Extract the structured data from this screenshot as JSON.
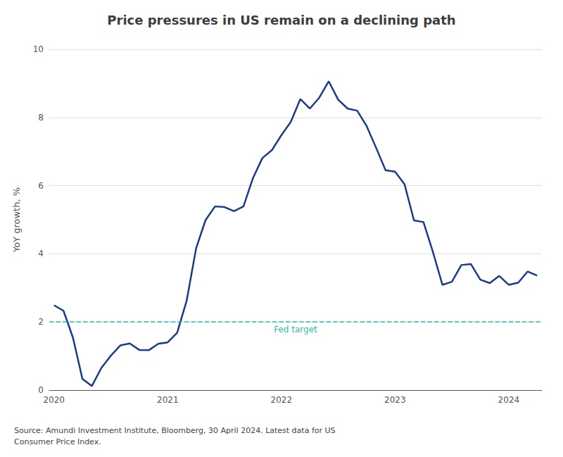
{
  "chart_data": {
    "type": "line",
    "title": "Price pressures in US remain on a declining path",
    "ylabel": "YoY growth, %",
    "categories": [
      "2020",
      null,
      null,
      null,
      null,
      null,
      null,
      null,
      null,
      null,
      null,
      null,
      "2021",
      null,
      null,
      null,
      null,
      null,
      null,
      null,
      null,
      null,
      null,
      null,
      "2022",
      null,
      null,
      null,
      null,
      null,
      null,
      null,
      null,
      null,
      null,
      null,
      "2023",
      null,
      null,
      null,
      null,
      null,
      null,
      null,
      null,
      null,
      null,
      null,
      "2024",
      null,
      null,
      null
    ],
    "values": [
      2.49,
      2.33,
      1.54,
      0.33,
      0.12,
      0.65,
      1.01,
      1.31,
      1.37,
      1.18,
      1.17,
      1.36,
      1.4,
      1.68,
      2.62,
      4.16,
      4.99,
      5.39,
      5.37,
      5.25,
      5.39,
      6.22,
      6.81,
      7.04,
      7.48,
      7.87,
      8.54,
      8.26,
      8.58,
      9.06,
      8.52,
      8.26,
      8.2,
      7.75,
      7.11,
      6.45,
      6.41,
      6.04,
      4.98,
      4.93,
      4.05,
      3.09,
      3.18,
      3.67,
      3.7,
      3.24,
      3.14,
      3.35,
      3.09,
      3.15,
      3.48,
      3.36
    ],
    "color": "#1a3a8c",
    "ylim": [
      0,
      10
    ],
    "yticks": [
      0,
      2,
      4,
      6,
      8,
      10
    ],
    "grid": true,
    "reference_line": {
      "value": 2.0,
      "label": "Fed target",
      "color": "#2bbfb0",
      "line_style": "dashed"
    },
    "source": "Source: Amundi Investment Institute, Bloomberg, 30 April 2024. Latest data for US\nConsumer Price Index."
  }
}
